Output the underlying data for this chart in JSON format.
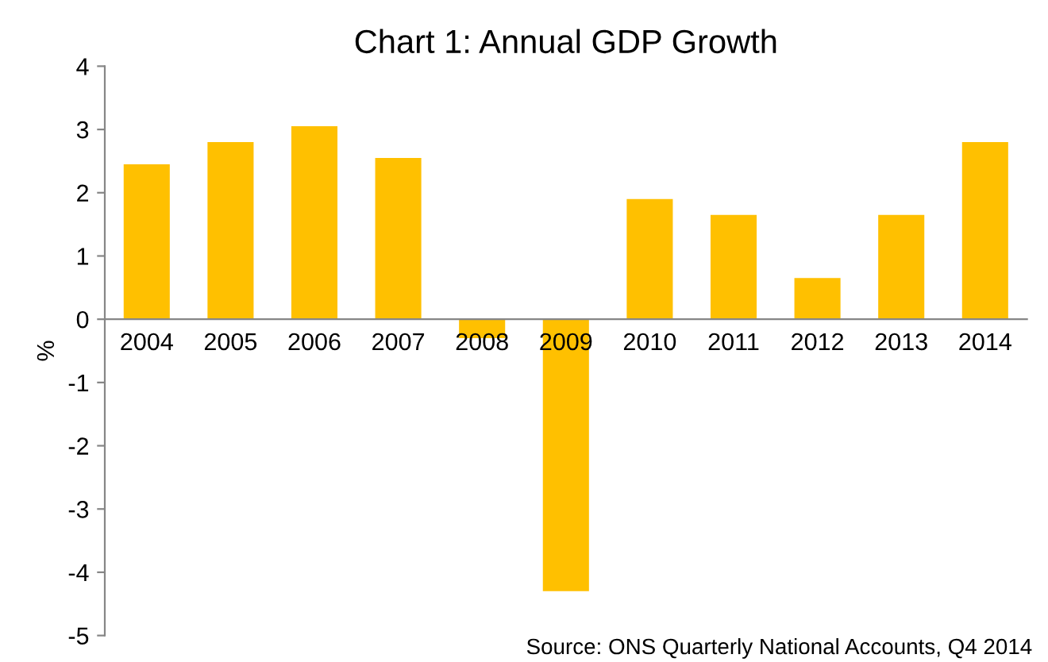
{
  "chart_data": {
    "type": "bar",
    "title": "Chart 1: Annual GDP Growth",
    "ylabel": "%",
    "categories": [
      "2004",
      "2005",
      "2006",
      "2007",
      "2008",
      "2009",
      "2010",
      "2011",
      "2012",
      "2013",
      "2014"
    ],
    "values": [
      2.45,
      2.8,
      3.05,
      2.55,
      -0.3,
      -4.3,
      1.9,
      1.65,
      0.65,
      1.65,
      2.8
    ],
    "color": "#ffc000",
    "ylim": [
      -5,
      4
    ],
    "yticks": [
      -5,
      -4,
      -3,
      -2,
      -1,
      0,
      1,
      2,
      3,
      4
    ],
    "grid": false,
    "legend": false,
    "annotations": [
      "Source: ONS Quarterly National Accounts, Q4 2014"
    ]
  }
}
